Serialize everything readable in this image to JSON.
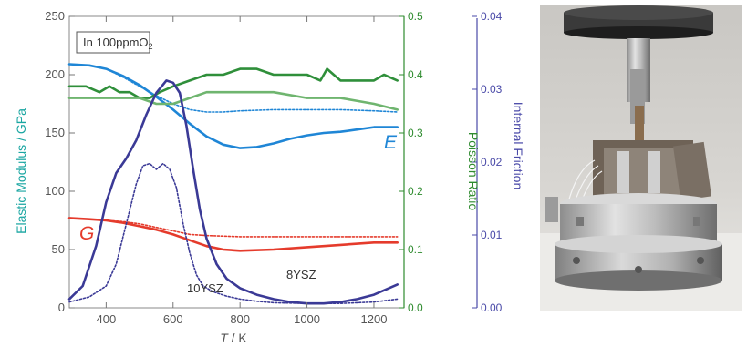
{
  "chart_data": {
    "type": "line",
    "annotation_box": "In 100ppmO",
    "annotation_sub": "2",
    "xlabel_italic": "T",
    "xlabel_rest": " / K",
    "x_ticks": [
      400,
      600,
      800,
      1000,
      1200
    ],
    "xlim": [
      290,
      1290
    ],
    "axes": {
      "left": {
        "label": "Elastic Modulus / GPa",
        "ticks": [
          0,
          50,
          100,
          150,
          200,
          250
        ],
        "lim": [
          0,
          250
        ],
        "color": "#1aa6a2"
      },
      "middle": {
        "label": "Poisson Ratio",
        "ticks": [
          "0.0",
          "0.1",
          "0.2",
          "0.3",
          "0.4",
          "0.5"
        ],
        "lim": [
          0,
          0.5
        ],
        "color": "#2e8b2e"
      },
      "right": {
        "label": "Internal Friction",
        "ticks": [
          "0.00",
          "0.01",
          "0.02",
          "0.03",
          "0.04"
        ],
        "lim": [
          0,
          0.04
        ],
        "color": "#4a4aa8"
      }
    },
    "curve_labels": {
      "E": "E",
      "G": "G",
      "bysz": "8YSZ",
      "ysz10": "10YSZ"
    },
    "series": [
      {
        "key": "E-8YSZ",
        "axis": "left",
        "color": "#1f86d6",
        "dash": false,
        "x": [
          290,
          350,
          400,
          450,
          500,
          550,
          600,
          650,
          700,
          750,
          800,
          850,
          900,
          950,
          1000,
          1050,
          1100,
          1150,
          1200,
          1270
        ],
        "y": [
          209,
          208,
          205,
          199,
          191,
          181,
          170,
          158,
          147,
          140,
          137,
          138,
          141,
          145,
          148,
          150,
          151,
          153,
          155,
          155
        ]
      },
      {
        "key": "E-10YSZ",
        "axis": "left",
        "color": "#1f86d6",
        "dash": true,
        "x": [
          290,
          350,
          400,
          450,
          500,
          550,
          600,
          650,
          700,
          750,
          800,
          900,
          1000,
          1100,
          1200,
          1270
        ],
        "y": [
          209,
          208,
          205,
          198,
          190,
          182,
          175,
          170,
          168,
          168,
          169,
          170,
          170,
          170,
          169,
          168
        ]
      },
      {
        "key": "G-8YSZ",
        "axis": "left",
        "color": "#e53b2c",
        "dash": false,
        "x": [
          290,
          350,
          400,
          450,
          500,
          550,
          600,
          650,
          700,
          750,
          800,
          900,
          1000,
          1100,
          1200,
          1270
        ],
        "y": [
          77,
          76,
          75,
          73,
          70,
          67,
          63,
          58,
          53,
          50,
          49,
          50,
          52,
          54,
          56,
          56
        ]
      },
      {
        "key": "G-10YSZ",
        "axis": "left",
        "color": "#e53b2c",
        "dash": true,
        "x": [
          290,
          350,
          400,
          450,
          500,
          550,
          600,
          650,
          700,
          800,
          900,
          1000,
          1100,
          1200,
          1270
        ],
        "y": [
          77,
          76,
          75,
          74,
          72,
          69,
          66,
          63,
          62,
          61,
          61,
          61,
          61,
          61,
          61
        ]
      },
      {
        "key": "Nu-8YSZ",
        "axis": "middle",
        "color": "#2f8f3a",
        "dash": false,
        "x": [
          290,
          340,
          380,
          410,
          440,
          470,
          500,
          530,
          560,
          600,
          650,
          700,
          750,
          800,
          850,
          900,
          950,
          1000,
          1040,
          1060,
          1080,
          1100,
          1150,
          1200,
          1230,
          1270
        ],
        "y": [
          0.38,
          0.38,
          0.37,
          0.38,
          0.37,
          0.37,
          0.36,
          0.36,
          0.37,
          0.38,
          0.39,
          0.4,
          0.4,
          0.41,
          0.41,
          0.4,
          0.4,
          0.4,
          0.39,
          0.41,
          0.4,
          0.39,
          0.39,
          0.39,
          0.4,
          0.39
        ]
      },
      {
        "key": "Nu-10YSZ",
        "axis": "middle",
        "color": "#6fb56f",
        "dash": false,
        "x": [
          290,
          350,
          400,
          450,
          500,
          550,
          600,
          650,
          700,
          750,
          800,
          900,
          1000,
          1100,
          1200,
          1270
        ],
        "y": [
          0.36,
          0.36,
          0.36,
          0.36,
          0.36,
          0.35,
          0.35,
          0.36,
          0.37,
          0.37,
          0.37,
          0.37,
          0.36,
          0.36,
          0.35,
          0.34
        ]
      },
      {
        "key": "Q-8YSZ",
        "axis": "right",
        "color": "#3b3a96",
        "dash": false,
        "x": [
          290,
          330,
          370,
          400,
          430,
          460,
          490,
          520,
          550,
          580,
          600,
          620,
          640,
          660,
          680,
          700,
          730,
          760,
          800,
          850,
          900,
          950,
          1000,
          1050,
          1100,
          1150,
          1200,
          1270
        ],
        "y": [
          0.0012,
          0.003,
          0.0085,
          0.0145,
          0.0185,
          0.0205,
          0.023,
          0.0265,
          0.0295,
          0.0312,
          0.0309,
          0.0295,
          0.025,
          0.019,
          0.0135,
          0.0095,
          0.006,
          0.004,
          0.0027,
          0.0018,
          0.0012,
          0.0008,
          0.0006,
          0.0006,
          0.0008,
          0.0012,
          0.0018,
          0.0032
        ]
      },
      {
        "key": "Q-10YSZ",
        "axis": "right",
        "color": "#3b3a96",
        "dash": true,
        "x": [
          290,
          350,
          400,
          430,
          460,
          490,
          510,
          530,
          550,
          570,
          590,
          610,
          630,
          650,
          670,
          690,
          720,
          760,
          800,
          850,
          900,
          1000,
          1100,
          1200,
          1270
        ],
        "y": [
          0.0008,
          0.0015,
          0.003,
          0.006,
          0.0115,
          0.017,
          0.0195,
          0.0198,
          0.019,
          0.0198,
          0.019,
          0.0165,
          0.0115,
          0.0075,
          0.0045,
          0.003,
          0.0022,
          0.0016,
          0.0012,
          0.0009,
          0.0007,
          0.0006,
          0.0006,
          0.0008,
          0.0012
        ]
      }
    ]
  }
}
